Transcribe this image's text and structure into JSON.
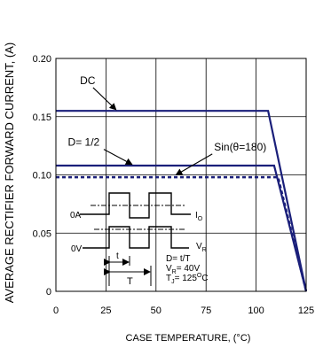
{
  "chart_data": {
    "type": "line",
    "title": "",
    "xlabel": "CASE TEMPERATURE, (°C)",
    "ylabel": "AVERAGE RECTIFIER FORWARD CURRENT, (A)",
    "xlim": [
      0,
      125
    ],
    "ylim": [
      0,
      0.2
    ],
    "x_ticks": [
      0,
      25,
      50,
      75,
      100,
      125
    ],
    "x_tick_labels": [
      "0",
      "25",
      "50",
      "75",
      "100",
      "125"
    ],
    "y_ticks": [
      0,
      0.05,
      0.1,
      0.15,
      0.2
    ],
    "y_tick_labels": [
      "0",
      "0.05",
      "0.10",
      "0.15",
      "0.20"
    ],
    "grid": true,
    "series": [
      {
        "name": "DC",
        "color": "#1a1f7a",
        "dashed": false,
        "x": [
          0,
          106,
          125
        ],
        "y": [
          0.155,
          0.155,
          0
        ]
      },
      {
        "name": "D= 1/2",
        "color": "#1a1f7a",
        "dashed": false,
        "x": [
          0,
          109,
          125
        ],
        "y": [
          0.108,
          0.108,
          0
        ]
      },
      {
        "name": "Sin(θ=180)",
        "color": "#1a1f7a",
        "dashed": true,
        "x": [
          0,
          111,
          125
        ],
        "y": [
          0.098,
          0.098,
          0
        ]
      }
    ],
    "annotations": [
      {
        "text": "DC",
        "x": 12,
        "y": 0.178,
        "arrow_to": [
          30,
          0.156
        ]
      },
      {
        "text": "D= 1/2",
        "x": 6,
        "y": 0.125,
        "arrow_to": [
          38,
          0.109
        ]
      },
      {
        "text": "Sin(θ=180)",
        "x": 79,
        "y": 0.121,
        "arrow_to": [
          60,
          0.1
        ]
      }
    ],
    "inset": {
      "labels": {
        "zero_amp": "0A",
        "io": "I",
        "io_sub": "O",
        "zero_volt": "0V",
        "vr": "V",
        "vr_sub": "R",
        "t_small": "t",
        "t_period": "T"
      },
      "conditions": [
        {
          "text": "D= t/T"
        },
        {
          "pre": "V",
          "sub": "R",
          "post": "= 40V"
        },
        {
          "pre": "T",
          "sub": "J",
          "post": "= 125",
          "sup": "O",
          "tail": "C"
        }
      ]
    }
  }
}
